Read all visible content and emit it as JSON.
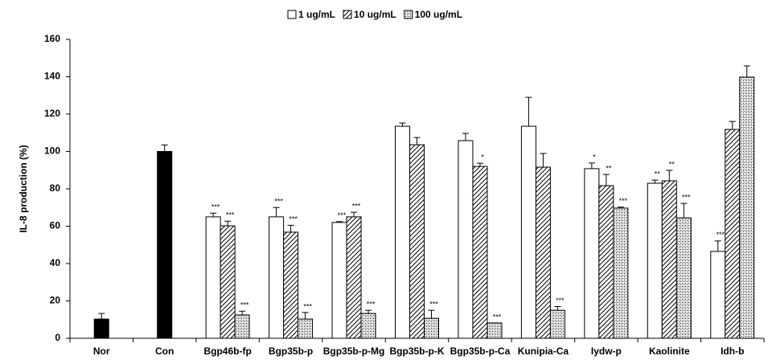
{
  "chart_data": {
    "type": "bar",
    "y_label": "IL-8 production (%)",
    "categories": [
      "Nor",
      "Con",
      "Bgp46b-fp",
      "Bgp35b-p",
      "Bgp35b-p-Mg",
      "Bgp35b-p-K",
      "Bgp35b-p-Ca",
      "Kunipia-Ca",
      "Iydw-p",
      "Kaolinite",
      "Idh-b"
    ],
    "control_values": [
      10.3,
      100,
      null,
      null,
      null,
      null,
      null,
      null,
      null,
      null,
      null
    ],
    "control_errors": [
      3,
      3.5,
      null,
      null,
      null,
      null,
      null,
      null,
      null,
      null,
      null
    ],
    "control_color": "#000000",
    "series": [
      {
        "name": "1 ug/mL",
        "color": "#ffffff",
        "pattern": "none",
        "values": [
          null,
          null,
          65,
          65,
          62,
          113.5,
          105.8,
          113.5,
          90.8,
          83,
          46.5
        ],
        "errors": [
          null,
          null,
          2,
          5,
          0.5,
          1.7,
          3.9,
          15.5,
          3,
          1.7,
          5.6
        ],
        "annotations": [
          null,
          null,
          "***",
          "***",
          "***",
          null,
          null,
          null,
          "*",
          "**",
          "***"
        ]
      },
      {
        "name": "10 ug/mL",
        "color": "#000000",
        "pattern": "hatch",
        "values": [
          null,
          null,
          60.2,
          56.8,
          65,
          103.6,
          92,
          91.6,
          81.7,
          84.3,
          111.8
        ],
        "errors": [
          null,
          null,
          2.5,
          3.7,
          2.5,
          3.9,
          1.7,
          7.3,
          6,
          5.6,
          4.3
        ],
        "annotations": [
          null,
          null,
          "***",
          "***",
          "***",
          null,
          "*",
          null,
          "**",
          "**",
          null
        ]
      },
      {
        "name": "100 ug/mL",
        "color": "#000000",
        "pattern": "cross",
        "values": [
          null,
          null,
          12.5,
          10.3,
          13.3,
          10.7,
          8.2,
          15,
          69.7,
          64.5,
          139.8
        ],
        "errors": [
          null,
          null,
          2,
          3.5,
          1.7,
          4.3,
          0,
          2,
          0.5,
          7.7,
          6
        ],
        "annotations": [
          null,
          null,
          "***",
          "***",
          "***",
          "***",
          "***",
          "***",
          "***",
          "***",
          null
        ]
      }
    ],
    "ylim": [
      0,
      160
    ],
    "yticks": [
      0,
      20,
      40,
      60,
      80,
      100,
      120,
      140,
      160
    ],
    "grid": false
  }
}
